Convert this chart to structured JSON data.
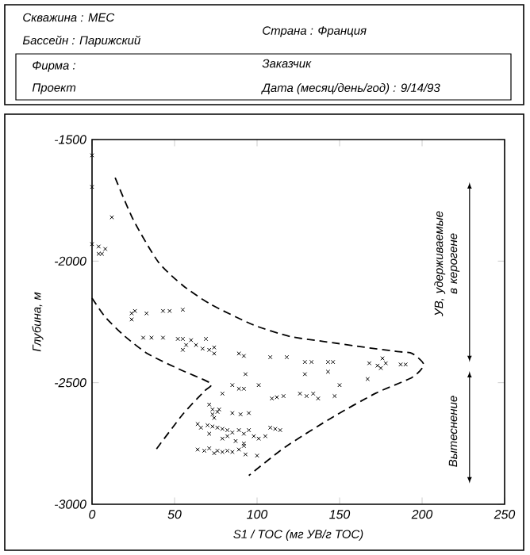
{
  "chart_data": {
    "type": "scatter",
    "xlabel": "S1 / TOC   (мг УВ/г TOC)",
    "ylabel": "Глубина, м",
    "xlim": [
      0,
      250
    ],
    "xticks": [
      0,
      50,
      100,
      150,
      200,
      250
    ],
    "ylim": [
      -3000,
      -1500
    ],
    "yticks": [
      -3000,
      -2500,
      -2000,
      -1500
    ],
    "grid": false,
    "annotations": [
      "Скважина : МЕС",
      "Бассейн : Парижский",
      "Страна : Франция",
      "Фирма :",
      "Проект",
      "Заказчик",
      "Дата (месяц/день/год) : 9/14/93",
      "УВ, удерживаемые в керогене",
      "Вытеснение"
    ],
    "series": [
      {
        "marker": "cross",
        "color": "#000000",
        "x": [
          0,
          0,
          12,
          0,
          4,
          8,
          4,
          6,
          24,
          26,
          33,
          43,
          47,
          55,
          24,
          31,
          36,
          43,
          52,
          55,
          57,
          60,
          63,
          69,
          67,
          71,
          74,
          74,
          55,
          89,
          92,
          108,
          118,
          129,
          133,
          143,
          146,
          143,
          129,
          93,
          101,
          85,
          89,
          92,
          79,
          109,
          112,
          116,
          126,
          130,
          134,
          137,
          147,
          150,
          168,
          173,
          175,
          178,
          176,
          187,
          190,
          167,
          71,
          73,
          76,
          73,
          77,
          74,
          85,
          90,
          95,
          64,
          66,
          70,
          73,
          76,
          79,
          82,
          85,
          89,
          92,
          95,
          98,
          101,
          105,
          108,
          111,
          114,
          64,
          68,
          71,
          74,
          76,
          79,
          82,
          85,
          89,
          92,
          93,
          100,
          82,
          79,
          87,
          92,
          71
        ],
        "values": [
          -1565,
          -1695,
          -1820,
          -1930,
          -1940,
          -1950,
          -1970,
          -1970,
          -2215,
          -2205,
          -2215,
          -2205,
          -2205,
          -2200,
          -2240,
          -2315,
          -2315,
          -2315,
          -2320,
          -2320,
          -2345,
          -2325,
          -2345,
          -2320,
          -2360,
          -2365,
          -2380,
          -2355,
          -2365,
          -2380,
          -2390,
          -2395,
          -2395,
          -2415,
          -2415,
          -2415,
          -2415,
          -2455,
          -2465,
          -2465,
          -2510,
          -2510,
          -2525,
          -2525,
          -2545,
          -2565,
          -2560,
          -2555,
          -2545,
          -2555,
          -2545,
          -2565,
          -2555,
          -2510,
          -2420,
          -2430,
          -2440,
          -2420,
          -2400,
          -2425,
          -2425,
          -2485,
          -2590,
          -2610,
          -2620,
          -2630,
          -2610,
          -2645,
          -2625,
          -2630,
          -2625,
          -2670,
          -2685,
          -2675,
          -2680,
          -2685,
          -2690,
          -2695,
          -2705,
          -2695,
          -2710,
          -2695,
          -2720,
          -2730,
          -2720,
          -2685,
          -2690,
          -2695,
          -2775,
          -2780,
          -2770,
          -2790,
          -2780,
          -2785,
          -2780,
          -2785,
          -2775,
          -2760,
          -2795,
          -2800,
          -2720,
          -2730,
          -2740,
          -2750,
          -2710
        ]
      },
      {
        "type": "line",
        "marker": "none",
        "line_style": "dashed",
        "color": "#000000",
        "x": [
          14,
          25,
          40,
          55,
          72,
          98,
          120,
          140,
          165,
          185,
          194,
          201,
          194,
          172,
          146,
          117,
          95
        ],
        "values": [
          -1657,
          -1830,
          -2002,
          -2100,
          -2178,
          -2263,
          -2310,
          -2330,
          -2354,
          -2372,
          -2380,
          -2426,
          -2478,
          -2543,
          -2641,
          -2765,
          -2882
        ]
      },
      {
        "type": "line",
        "marker": "none",
        "line_style": "dashed",
        "color": "#000000",
        "x": [
          0,
          8,
          20,
          34,
          53,
          72,
          68,
          55,
          39
        ],
        "values": [
          -2152,
          -2230,
          -2310,
          -2382,
          -2445,
          -2503,
          -2535,
          -2630,
          -2773
        ]
      }
    ]
  }
}
